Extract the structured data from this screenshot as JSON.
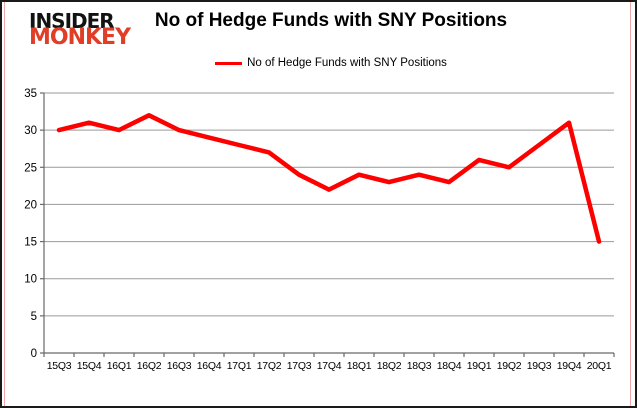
{
  "logo": {
    "line1": "INSIDER",
    "line2": "MONKEY"
  },
  "header": {
    "title": "No of Hedge Funds with SNY Positions"
  },
  "legend": {
    "label": "No of Hedge Funds with SNY Positions"
  },
  "colors": {
    "series_line": "#fe0000",
    "gridline": "#9a9a9a",
    "axis": "#696969",
    "logo_black": "#121212",
    "logo_red": "#e13e28",
    "frame_pink": "#f0a8a8",
    "text": "#000000"
  },
  "chart_data": {
    "type": "line",
    "title": "No of Hedge Funds with SNY Positions",
    "categories": [
      "15Q3",
      "15Q4",
      "16Q1",
      "16Q2",
      "16Q3",
      "16Q4",
      "17Q1",
      "17Q2",
      "17Q3",
      "17Q4",
      "18Q1",
      "18Q2",
      "18Q3",
      "18Q4",
      "19Q1",
      "19Q2",
      "19Q3",
      "19Q4",
      "20Q1"
    ],
    "series": [
      {
        "name": "No of Hedge Funds with SNY Positions",
        "values": [
          30,
          31,
          30,
          32,
          30,
          29,
          28,
          27,
          24,
          22,
          24,
          23,
          24,
          23,
          26,
          25,
          28,
          31,
          15
        ]
      }
    ],
    "ylim": [
      0,
      35
    ],
    "ytick_step": 5,
    "grid": "horizontal",
    "legend_position": "top"
  }
}
